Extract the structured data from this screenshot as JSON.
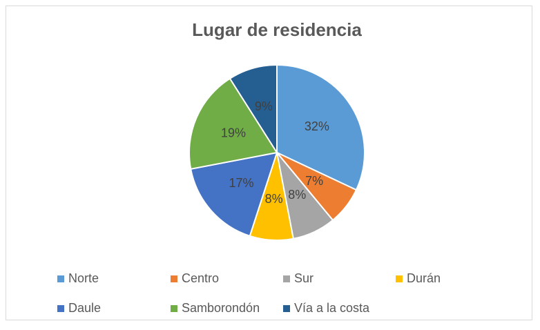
{
  "chart_data": {
    "type": "pie",
    "title": "Lugar de residencia",
    "categories": [
      "Norte",
      "Centro",
      "Sur",
      "Durán",
      "Daule",
      "Samborondón",
      "Vía a la costa"
    ],
    "values": [
      32,
      7,
      8,
      8,
      17,
      19,
      9
    ],
    "value_labels": [
      "32%",
      "7%",
      "8%",
      "8%",
      "17%",
      "19%",
      "9%"
    ],
    "colors": [
      "#5b9bd5",
      "#ed7d31",
      "#a5a5a5",
      "#ffc000",
      "#4472c4",
      "#70ad47",
      "#255e91"
    ],
    "legend": "bottom"
  }
}
